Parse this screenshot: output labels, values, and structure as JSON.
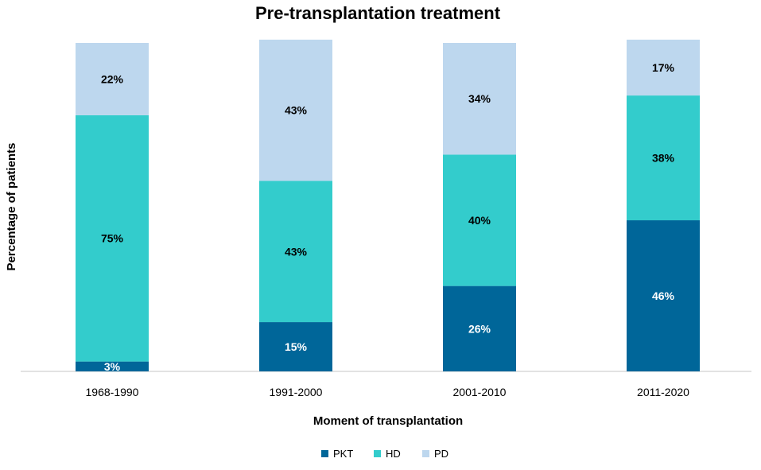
{
  "chart_data": {
    "type": "bar",
    "stacked": true,
    "title": "Pre-transplantation treatment",
    "xlabel": "Moment of transplantation",
    "ylabel": "Percentage of patients",
    "categories": [
      "1968-1990",
      "1991-2000",
      "2001-2010",
      "2011-2020"
    ],
    "series": [
      {
        "name": "PKT",
        "color": "#006699",
        "label_color": "#ffffff",
        "values": [
          3,
          15,
          26,
          46
        ],
        "labels": [
          "3%",
          "15%",
          "26%",
          "46%"
        ]
      },
      {
        "name": "HD",
        "color": "#33CCCC",
        "label_color": "#000000",
        "values": [
          75,
          43,
          40,
          38
        ],
        "labels": [
          "75%",
          "43%",
          "40%",
          "38%"
        ]
      },
      {
        "name": "PD",
        "color": "#BDD7EE",
        "label_color": "#000000",
        "values": [
          22,
          43,
          34,
          17
        ],
        "labels": [
          "22%",
          "43%",
          "34%",
          "17%"
        ]
      }
    ],
    "ylim": [
      0,
      100
    ],
    "grid": false,
    "legend_position": "bottom-center",
    "axis_color": "#d9d9d9"
  }
}
